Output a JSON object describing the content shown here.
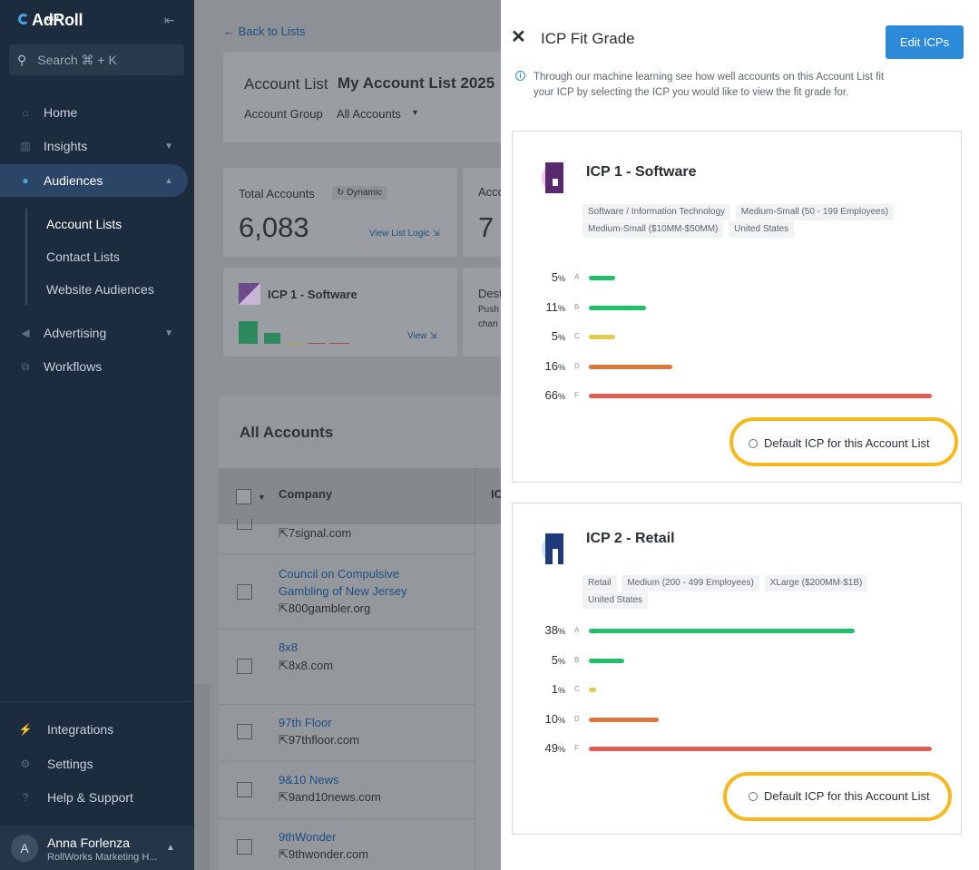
{
  "sidebar": {
    "logo": "AdRoll",
    "logo_sub": "ABM",
    "search_placeholder": "Search ⌘ + K",
    "nav": [
      {
        "label": "Home",
        "icon": "home-icon"
      },
      {
        "label": "Insights",
        "icon": "insights-icon"
      },
      {
        "label": "Audiences",
        "icon": "audiences-icon"
      }
    ],
    "sub_items": [
      "Account Lists",
      "Contact Lists",
      "Website Audiences"
    ],
    "nav_lower": [
      {
        "label": "Advertising",
        "icon": "megaphone-icon"
      },
      {
        "label": "Workflows",
        "icon": "workflow-icon"
      }
    ],
    "bottom": [
      {
        "label": "Integrations",
        "icon": "plug-icon"
      },
      {
        "label": "Settings",
        "icon": "gear-icon"
      },
      {
        "label": "Help & Support",
        "icon": "help-icon"
      }
    ],
    "user": {
      "initial": "A",
      "name": "Anna Forlenza",
      "org": "RollWorks Marketing H..."
    }
  },
  "main": {
    "back": "Back to Lists",
    "account_list_label": "Account List",
    "account_list_value": "My Account List 2025",
    "account_group_label": "Account Group",
    "account_group_value": "All Accounts",
    "total_accounts_label": "Total Accounts",
    "dynamic_badge": "Dynamic",
    "total_accounts_value": "6,083",
    "view_list_logic": "View List Logic",
    "second_card_label": "Acco",
    "second_card_value": "7",
    "icp_card_title": "ICP 1 - Software",
    "icp_card_view": "View",
    "dest_title": "Dest",
    "dest_text_1": "Push",
    "dest_text_2": "chan",
    "all_accounts_title": "All Accounts",
    "col_company": "Company",
    "col_icp": "IC",
    "rows": [
      {
        "name": "",
        "domain": "7signal.com"
      },
      {
        "name": "Council on Compulsive Gambling of New Jersey",
        "domain": "800gambler.org"
      },
      {
        "name": "8x8",
        "domain": "8x8.com"
      },
      {
        "name": "97th Floor",
        "domain": "97thfloor.com"
      },
      {
        "name": "9&10 News",
        "domain": "9and10news.com"
      },
      {
        "name": "9thWonder",
        "domain": "9thwonder.com"
      }
    ]
  },
  "drawer": {
    "title": "ICP Fit Grade",
    "edit_button": "Edit ICPs",
    "info": "Through our machine learning see how well accounts on this Account List fit your ICP by selecting the ICP you would like to view the fit grade for.",
    "default_label": "Default ICP for this Account List",
    "grade_colors": {
      "A": "#1fbf6b",
      "B": "#1fbf6b",
      "C": "#e3c84a",
      "D": "#d9773f",
      "F": "#e05c57"
    },
    "icps": [
      {
        "title": "ICP 1 - Software",
        "tags": [
          "Software / Information Technology",
          "Medium-Small (50 - 199 Employees)",
          "Medium-Small ($10MM-$50MM)",
          "United States"
        ],
        "grades": [
          {
            "grade": "A",
            "pct": 5
          },
          {
            "grade": "B",
            "pct": 11
          },
          {
            "grade": "C",
            "pct": 5
          },
          {
            "grade": "D",
            "pct": 16
          },
          {
            "grade": "F",
            "pct": 66
          }
        ]
      },
      {
        "title": "ICP 2 - Retail",
        "tags": [
          "Retail",
          "Medium (200 - 499 Employees)",
          "XLarge ($200MM-$1B)",
          "United States"
        ],
        "grades": [
          {
            "grade": "A",
            "pct": 38
          },
          {
            "grade": "B",
            "pct": 5
          },
          {
            "grade": "C",
            "pct": 1
          },
          {
            "grade": "D",
            "pct": 10
          },
          {
            "grade": "F",
            "pct": 49
          }
        ]
      }
    ]
  }
}
